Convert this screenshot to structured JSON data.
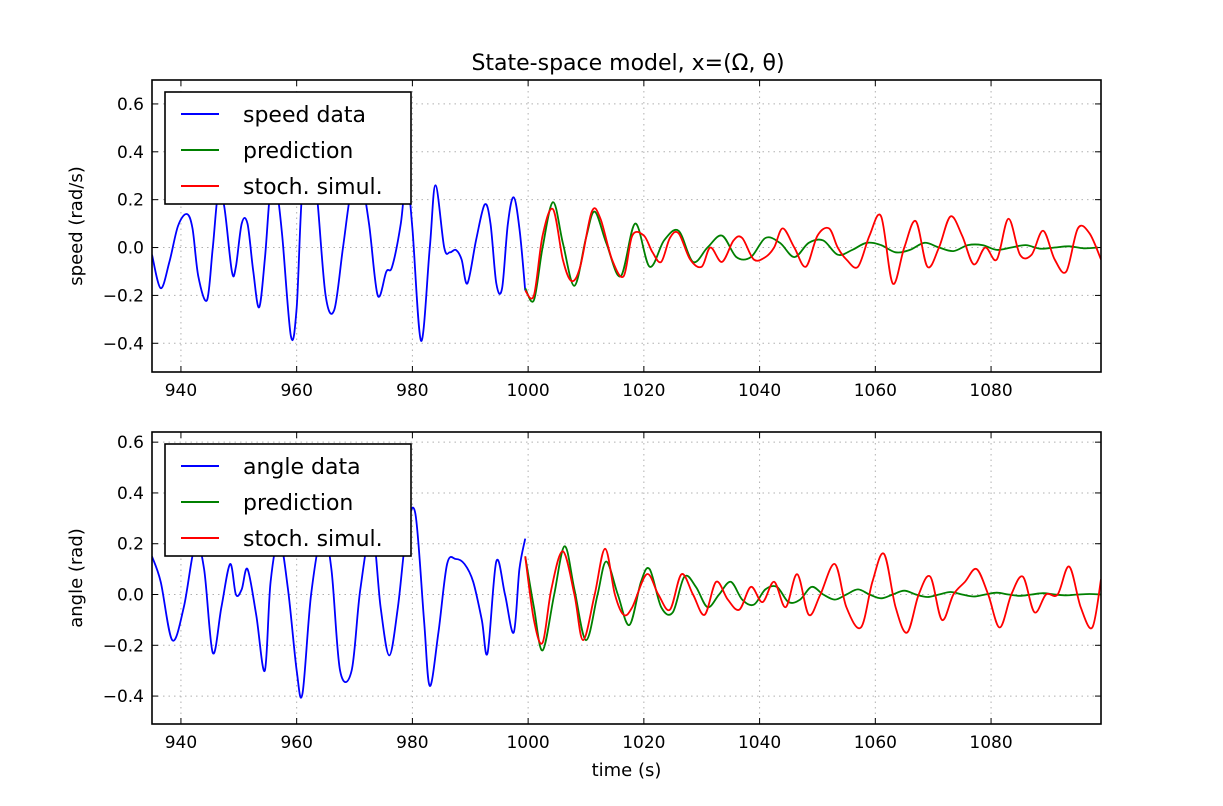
{
  "figure_title": "State-space model, x=(Ω, θ)",
  "colors": {
    "data": "#0000ff",
    "prediction": "#008000",
    "simulation": "#ff0000"
  },
  "chart_data": [
    {
      "type": "line",
      "title": "State-space model, x=(Ω, θ)",
      "xlabel": "",
      "ylabel": "speed (rad/s)",
      "xlim": [
        935,
        1099
      ],
      "ylim": [
        -0.52,
        0.7
      ],
      "xticks": [
        940,
        960,
        980,
        1000,
        1020,
        1040,
        1060,
        1080
      ],
      "xtick_labels": [
        "940",
        "960",
        "980",
        "1000",
        "1020",
        "1040",
        "1060",
        "1080"
      ],
      "yticks": [
        -0.4,
        -0.2,
        0.0,
        0.2,
        0.4,
        0.6
      ],
      "ytick_labels": [
        "−0.4",
        "−0.2",
        "0.0",
        "0.2",
        "0.4",
        "0.6"
      ],
      "grid": true,
      "legend_position": "top-left",
      "series": [
        {
          "name": "speed data",
          "color": "#0000ff",
          "x": [
            935,
            936.5,
            938,
            939.5,
            941,
            942,
            943,
            944.5,
            945.5,
            946.5,
            947.5,
            948.8,
            949.5,
            950.5,
            951.5,
            952.5,
            953.5,
            954.5,
            955.5,
            956.5,
            957.5,
            959,
            960,
            961,
            962.5,
            963.5,
            965,
            966.5,
            968,
            969.5,
            971,
            972.5,
            974,
            975.5,
            976.5,
            978,
            979,
            980,
            981.5,
            983,
            984,
            985.5,
            986.5,
            987.5,
            988.5,
            989.5,
            991,
            992.5,
            993.5,
            994.5,
            995.5,
            996.5,
            997.5,
            998.5,
            999.5
          ],
          "values": [
            -0.03,
            -0.17,
            -0.06,
            0.09,
            0.14,
            0.08,
            -0.12,
            -0.22,
            0.0,
            0.24,
            0.17,
            -0.1,
            -0.08,
            0.1,
            0.1,
            -0.1,
            -0.25,
            -0.05,
            0.25,
            0.25,
            0.05,
            -0.37,
            -0.25,
            0.25,
            0.35,
            0.22,
            -0.2,
            -0.26,
            0.0,
            0.25,
            0.3,
            0.1,
            -0.2,
            -0.1,
            -0.08,
            0.1,
            0.3,
            0.08,
            -0.39,
            0.0,
            0.26,
            0.0,
            -0.02,
            -0.01,
            -0.05,
            -0.15,
            0.03,
            0.18,
            0.1,
            -0.15,
            -0.17,
            0.1,
            0.21,
            0.08,
            -0.18
          ]
        },
        {
          "name": "prediction",
          "color": "#008000",
          "x": [
            999.5,
            1001,
            1002.5,
            1004.3,
            1006,
            1008,
            1010,
            1011.5,
            1013.5,
            1016,
            1018.5,
            1021,
            1023.5,
            1026,
            1028.5,
            1031,
            1033.5,
            1036,
            1038.5,
            1041,
            1043.5,
            1046,
            1048.5,
            1051,
            1053.5,
            1056,
            1058.5,
            1061,
            1063.5,
            1066,
            1068.5,
            1071,
            1073.5,
            1076,
            1078.5,
            1081,
            1083.5,
            1086,
            1088.5,
            1091,
            1093.5,
            1096,
            1098.5
          ],
          "values": [
            -0.17,
            -0.22,
            0.0,
            0.19,
            0.02,
            -0.16,
            0.04,
            0.15,
            0.02,
            -0.12,
            0.1,
            -0.08,
            0.03,
            0.07,
            -0.06,
            0.0,
            0.05,
            -0.04,
            -0.04,
            0.04,
            0.02,
            -0.04,
            0.02,
            0.03,
            -0.03,
            -0.01,
            0.02,
            0.01,
            -0.02,
            -0.01,
            0.02,
            0.0,
            -0.015,
            0.01,
            0.01,
            -0.01,
            0.0,
            0.01,
            -0.005,
            0.0,
            0.005,
            -0.003,
            0.0
          ]
        },
        {
          "name": "stoch. simul.",
          "color": "#ff0000",
          "x": [
            999.5,
            1001,
            1002.5,
            1004.3,
            1006,
            1007.5,
            1009,
            1011,
            1012.5,
            1014.5,
            1016.5,
            1018,
            1020,
            1021.5,
            1023,
            1024.5,
            1026,
            1028,
            1030,
            1031.5,
            1033.5,
            1035.5,
            1037,
            1039,
            1041,
            1042.5,
            1044,
            1046,
            1048,
            1050,
            1052,
            1053.5,
            1055,
            1057,
            1059,
            1061,
            1063,
            1065,
            1067,
            1069,
            1071,
            1073,
            1075,
            1077,
            1079,
            1081,
            1083,
            1085,
            1087,
            1089,
            1091,
            1093,
            1095,
            1097,
            1099
          ],
          "values": [
            -0.18,
            -0.2,
            0.05,
            0.16,
            -0.05,
            -0.14,
            -0.08,
            0.15,
            0.12,
            -0.05,
            -0.12,
            0.05,
            0.05,
            -0.02,
            -0.06,
            0.04,
            0.06,
            -0.05,
            -0.08,
            0.0,
            -0.06,
            0.03,
            0.04,
            -0.05,
            -0.04,
            0.0,
            0.08,
            0.0,
            -0.08,
            0.05,
            0.08,
            0.0,
            -0.05,
            -0.08,
            0.05,
            0.13,
            -0.15,
            0.0,
            0.11,
            -0.08,
            0.0,
            0.13,
            0.05,
            -0.07,
            0.0,
            -0.05,
            0.12,
            -0.03,
            -0.03,
            0.07,
            -0.05,
            -0.1,
            0.08,
            0.06,
            -0.05
          ]
        }
      ]
    },
    {
      "type": "line",
      "title": "",
      "xlabel": "time (s)",
      "ylabel": "angle (rad)",
      "xlim": [
        935,
        1099
      ],
      "ylim": [
        -0.51,
        0.64
      ],
      "xticks": [
        940,
        960,
        980,
        1000,
        1020,
        1040,
        1060,
        1080
      ],
      "xtick_labels": [
        "940",
        "960",
        "980",
        "1000",
        "1020",
        "1040",
        "1060",
        "1080"
      ],
      "yticks": [
        -0.4,
        -0.2,
        0.0,
        0.2,
        0.4,
        0.6
      ],
      "ytick_labels": [
        "−0.4",
        "−0.2",
        "0.0",
        "0.2",
        "0.4",
        "0.6"
      ],
      "grid": true,
      "legend_position": "top-left",
      "series": [
        {
          "name": "angle data",
          "color": "#0000ff",
          "x": [
            935,
            936.5,
            938.5,
            940.5,
            942.5,
            944,
            945.5,
            947,
            948.5,
            949.5,
            950.5,
            951.5,
            953,
            954.5,
            955.5,
            957,
            958.5,
            960,
            961,
            962.5,
            964.5,
            966,
            967.5,
            969.5,
            971,
            973,
            974.5,
            976,
            977.5,
            979,
            980.5,
            982,
            983,
            984.5,
            986,
            987.5,
            989,
            990.5,
            992,
            993,
            994.5,
            996,
            997.5,
            998.5,
            999.5
          ],
          "values": [
            0.15,
            0.05,
            -0.18,
            -0.05,
            0.2,
            0.1,
            -0.23,
            -0.05,
            0.12,
            0.0,
            0.02,
            0.1,
            -0.08,
            -0.3,
            0.05,
            0.22,
            0.02,
            -0.3,
            -0.39,
            0.0,
            0.25,
            0.1,
            -0.3,
            -0.3,
            0.02,
            0.26,
            -0.05,
            -0.24,
            -0.05,
            0.25,
            0.32,
            -0.1,
            -0.36,
            -0.15,
            0.12,
            0.14,
            0.12,
            0.05,
            -0.1,
            -0.23,
            0.13,
            0.0,
            -0.15,
            0.1,
            0.22
          ]
        },
        {
          "name": "prediction",
          "color": "#008000",
          "x": [
            999.5,
            1001,
            1002.5,
            1004.5,
            1006.3,
            1008,
            1010,
            1012,
            1013.5,
            1015.5,
            1017.5,
            1019.5,
            1021,
            1023,
            1025,
            1027,
            1029,
            1031,
            1033,
            1035,
            1037,
            1039,
            1041,
            1043,
            1045,
            1047,
            1049,
            1051,
            1053,
            1055,
            1057,
            1059,
            1061,
            1063,
            1065,
            1067,
            1069,
            1071,
            1073,
            1075,
            1077,
            1079,
            1081,
            1083,
            1085,
            1087,
            1089,
            1091,
            1093,
            1095,
            1097,
            1099
          ],
          "values": [
            0.15,
            -0.05,
            -0.22,
            0.0,
            0.19,
            0.02,
            -0.18,
            0.0,
            0.13,
            0.0,
            -0.12,
            0.05,
            0.1,
            -0.05,
            -0.07,
            0.07,
            0.03,
            -0.05,
            0.0,
            0.05,
            -0.02,
            -0.04,
            0.02,
            0.03,
            -0.03,
            -0.02,
            0.03,
            0.0,
            -0.02,
            0.0,
            0.02,
            0.0,
            -0.015,
            0.0,
            0.015,
            0.0,
            -0.01,
            0.0,
            0.01,
            0.0,
            -0.008,
            0.0,
            0.007,
            0.0,
            -0.005,
            0.0,
            0.005,
            0.0,
            -0.003,
            0.0,
            0.002,
            0.0
          ]
        },
        {
          "name": "stoch. simul.",
          "color": "#ff0000",
          "x": [
            999.5,
            1001,
            1002.5,
            1004,
            1006,
            1008,
            1009.5,
            1011.5,
            1013.3,
            1015,
            1016.5,
            1018,
            1020.5,
            1022.5,
            1024.5,
            1026.5,
            1028.5,
            1030.5,
            1032.5,
            1034.5,
            1036.5,
            1038.5,
            1040.5,
            1042.5,
            1044.5,
            1046.5,
            1048.5,
            1050.5,
            1053,
            1055,
            1057.5,
            1059.5,
            1061.5,
            1063.5,
            1065.5,
            1067.5,
            1069.5,
            1071.5,
            1073.5,
            1075.5,
            1077.5,
            1079.5,
            1081.5,
            1083.5,
            1085.5,
            1087.5,
            1089.5,
            1091.5,
            1093.5,
            1095.5,
            1097.5,
            1099
          ],
          "values": [
            0.15,
            -0.1,
            -0.19,
            0.02,
            0.17,
            0.0,
            -0.18,
            0.0,
            0.18,
            0.0,
            -0.08,
            -0.05,
            0.08,
            0.0,
            -0.06,
            0.08,
            0.0,
            -0.08,
            0.05,
            -0.02,
            -0.06,
            0.03,
            -0.03,
            0.05,
            -0.05,
            0.08,
            -0.08,
            0.0,
            0.12,
            -0.05,
            -0.13,
            0.05,
            0.16,
            -0.05,
            -0.15,
            0.0,
            0.07,
            -0.1,
            0.0,
            0.05,
            0.1,
            0.0,
            -0.13,
            0.0,
            0.07,
            -0.07,
            0.0,
            0.0,
            0.11,
            -0.05,
            -0.13,
            0.06
          ]
        }
      ]
    }
  ]
}
